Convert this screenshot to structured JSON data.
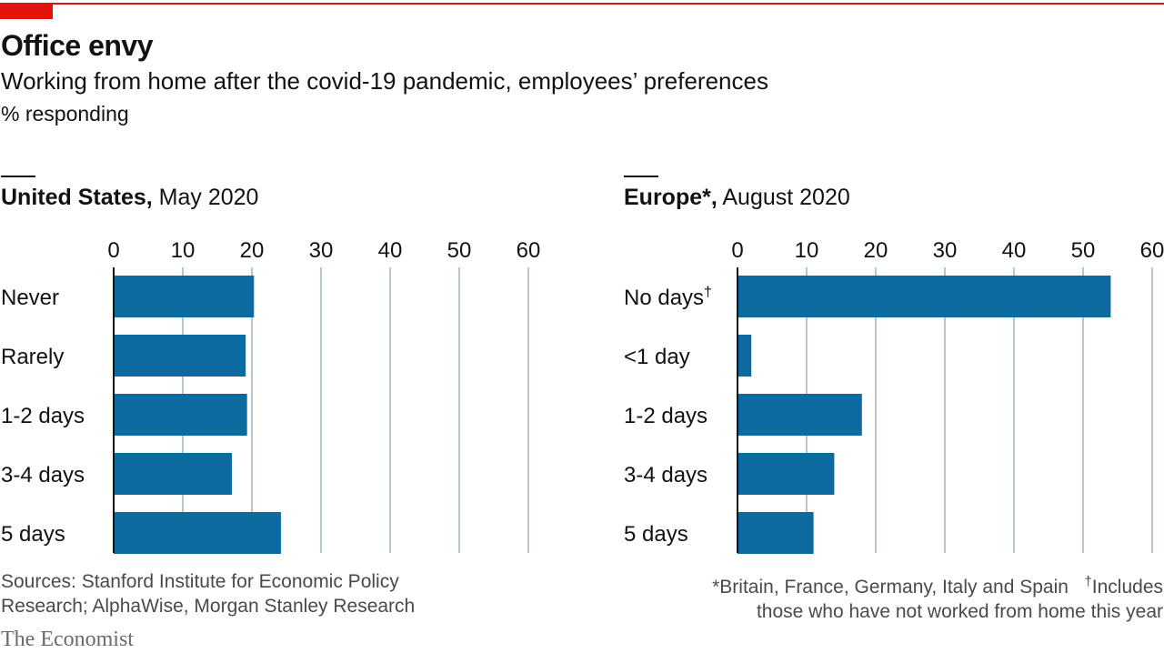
{
  "header": {
    "title": "Office envy",
    "subtitle": "Working from home after the covid-19 pandemic, employees’ preferences",
    "unit": "% responding"
  },
  "colors": {
    "bar": "#0d6a9e",
    "grid": "#b7c6cf",
    "accent": "#e3120b"
  },
  "chart_data": [
    {
      "type": "bar",
      "orientation": "horizontal",
      "title_bold": "United States,",
      "title_rest": " May 2020",
      "categories": [
        "Never",
        "Rarely",
        "1-2 days",
        "3-4 days",
        "5 days"
      ],
      "values": [
        20.3,
        19.1,
        19.3,
        17.1,
        24.2
      ],
      "xlim": [
        0,
        60
      ],
      "xticks": [
        "0",
        "10",
        "20",
        "30",
        "40",
        "50",
        "60"
      ],
      "grid": true
    },
    {
      "type": "bar",
      "orientation": "horizontal",
      "title_bold": "Europe*,",
      "title_rest": " August 2020",
      "categories": [
        "No days",
        "<1 day",
        "1-2 days",
        "3-4 days",
        "5 days"
      ],
      "category_marks": [
        "†",
        "",
        "",
        "",
        ""
      ],
      "values": [
        54,
        2,
        18,
        14,
        11
      ],
      "xlim": [
        0,
        60
      ],
      "xticks": [
        "0",
        "10",
        "20",
        "30",
        "40",
        "50",
        "60"
      ],
      "grid": true
    }
  ],
  "footer": {
    "sources_line1": "Sources: Stanford Institute for Economic Policy",
    "sources_line2": "Research; AlphaWise, Morgan Stanley Research",
    "note_star": "*Britain, France, Germany, Italy and Spain",
    "note_dagger_mark": "†",
    "note_dagger_line1": "Includes",
    "note_dagger_line2": "those who have not worked from home this year",
    "brand": "The Economist"
  }
}
